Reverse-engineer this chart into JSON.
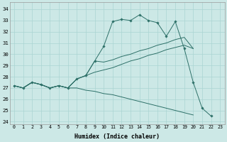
{
  "xlabel": "Humidex (Indice chaleur)",
  "bg_color": "#cce8e6",
  "grid_color": "#aad4d2",
  "line_color": "#2d7068",
  "xlim": [
    -0.5,
    23.5
  ],
  "ylim": [
    23.8,
    34.6
  ],
  "yticks": [
    24,
    25,
    26,
    27,
    28,
    29,
    30,
    31,
    32,
    33,
    34
  ],
  "xticks": [
    0,
    1,
    2,
    3,
    4,
    5,
    6,
    7,
    8,
    9,
    10,
    11,
    12,
    13,
    14,
    15,
    16,
    17,
    18,
    19,
    20,
    21,
    22,
    23
  ],
  "line1_x": [
    0,
    1,
    2,
    3,
    4,
    5,
    6,
    7,
    8,
    9,
    10,
    11,
    12,
    13,
    14,
    15,
    16,
    17,
    18,
    19,
    20,
    21,
    22
  ],
  "line1_y": [
    27.2,
    27.0,
    27.5,
    27.3,
    27.0,
    27.2,
    27.0,
    27.8,
    28.1,
    29.4,
    30.7,
    32.9,
    33.1,
    33.0,
    33.5,
    33.0,
    32.8,
    31.6,
    32.9,
    30.5,
    27.5,
    25.2,
    24.5
  ],
  "line2_x": [
    0,
    1,
    2,
    3,
    4,
    5,
    6,
    7,
    8,
    9,
    10,
    11,
    12,
    13,
    14,
    15,
    16,
    17,
    18,
    19,
    20
  ],
  "line2_y": [
    27.2,
    27.0,
    27.5,
    27.3,
    27.0,
    27.2,
    27.0,
    27.8,
    28.1,
    29.4,
    29.3,
    29.5,
    29.8,
    30.0,
    30.3,
    30.5,
    30.8,
    31.0,
    31.3,
    31.5,
    30.5
  ],
  "line3_x": [
    0,
    1,
    2,
    3,
    4,
    5,
    6,
    7,
    8,
    9,
    10,
    11,
    12,
    13,
    14,
    15,
    16,
    17,
    18,
    19,
    20
  ],
  "line3_y": [
    27.2,
    27.0,
    27.5,
    27.3,
    27.0,
    27.2,
    27.0,
    27.8,
    28.1,
    28.4,
    28.6,
    28.8,
    29.1,
    29.4,
    29.6,
    29.9,
    30.1,
    30.4,
    30.6,
    30.8,
    30.5
  ],
  "line4_x": [
    0,
    1,
    2,
    3,
    4,
    5,
    6,
    7,
    8,
    9,
    10,
    11,
    12,
    13,
    14,
    15,
    16,
    17,
    18,
    19,
    20
  ],
  "line4_y": [
    27.2,
    27.0,
    27.5,
    27.3,
    27.0,
    27.2,
    27.0,
    27.0,
    26.8,
    26.7,
    26.5,
    26.4,
    26.2,
    26.0,
    25.8,
    25.6,
    25.4,
    25.2,
    25.0,
    24.8,
    24.6
  ]
}
